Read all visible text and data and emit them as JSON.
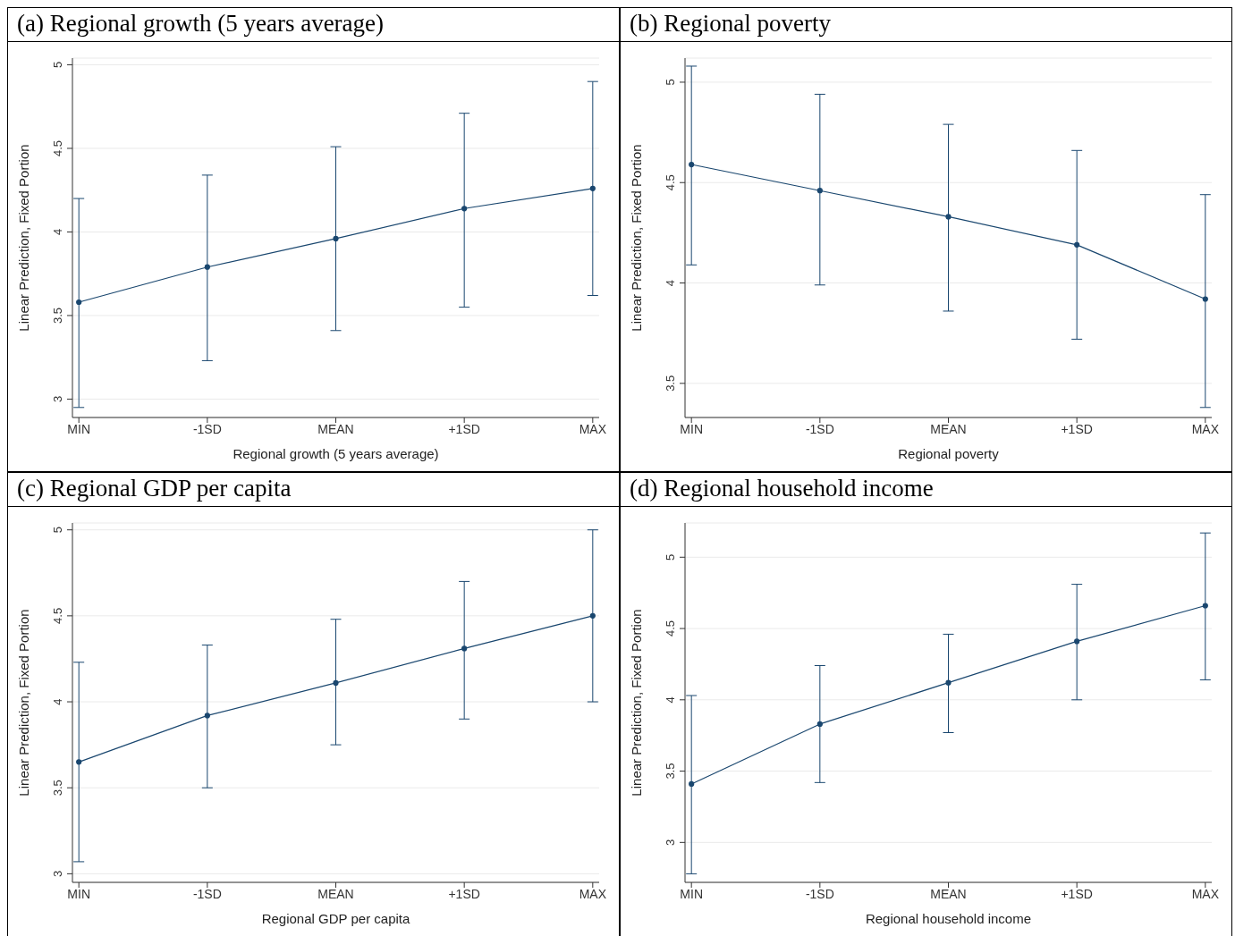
{
  "chart_data": [
    {
      "type": "line",
      "title": "(a) Regional growth (5 years average)",
      "xlabel": "Regional growth (5 years average)",
      "ylabel": "Linear Prediction, Fixed Portion",
      "categories": [
        "MIN",
        "-1SD",
        "MEAN",
        "+1SD",
        "MAX"
      ],
      "series": [
        {
          "color": "#1a476f",
          "values": [
            3.58,
            3.79,
            3.96,
            4.14,
            4.26
          ],
          "errors": [
            [
              2.95,
              4.2
            ],
            [
              3.23,
              4.34
            ],
            [
              3.41,
              4.51
            ],
            [
              3.55,
              4.71
            ],
            [
              3.62,
              4.9
            ]
          ]
        }
      ],
      "ylim": [
        2.89,
        5.04
      ],
      "yticks": [
        3,
        3.5,
        4,
        4.5,
        5
      ],
      "grid": "y",
      "marker": "circle",
      "line_style": "solid"
    },
    {
      "type": "line",
      "title": "(b) Regional poverty",
      "xlabel": "Regional poverty",
      "ylabel": "Linear Prediction, Fixed Portion",
      "categories": [
        "MIN",
        "-1SD",
        "MEAN",
        "+1SD",
        "MAX"
      ],
      "series": [
        {
          "color": "#1a476f",
          "values": [
            4.59,
            4.46,
            4.33,
            4.19,
            3.92
          ],
          "errors": [
            [
              4.09,
              5.08
            ],
            [
              3.99,
              4.94
            ],
            [
              3.86,
              4.79
            ],
            [
              3.72,
              4.66
            ],
            [
              3.38,
              4.44
            ]
          ]
        }
      ],
      "ylim": [
        3.33,
        5.12
      ],
      "yticks": [
        3.5,
        4,
        4.5,
        5
      ],
      "grid": "y",
      "marker": "circle",
      "line_style": "solid"
    },
    {
      "type": "line",
      "title": "(c) Regional GDP per capita",
      "xlabel": "Regional GDP per capita",
      "ylabel": "Linear Prediction, Fixed Portion",
      "categories": [
        "MIN",
        "-1SD",
        "MEAN",
        "+1SD",
        "MAX"
      ],
      "series": [
        {
          "color": "#1a476f",
          "values": [
            3.65,
            3.92,
            4.11,
            4.31,
            4.5
          ],
          "errors": [
            [
              3.07,
              4.23
            ],
            [
              3.5,
              4.33
            ],
            [
              3.75,
              4.48
            ],
            [
              3.9,
              4.7
            ],
            [
              4.0,
              5.0
            ]
          ]
        }
      ],
      "ylim": [
        2.95,
        5.04
      ],
      "yticks": [
        3,
        3.5,
        4,
        4.5,
        5
      ],
      "grid": "y",
      "marker": "circle",
      "line_style": "solid"
    },
    {
      "type": "line",
      "title": "(d) Regional household income",
      "xlabel": "Regional household income",
      "ylabel": "Linear Prediction, Fixed Portion",
      "categories": [
        "MIN",
        "-1SD",
        "MEAN",
        "+1SD",
        "MAX"
      ],
      "series": [
        {
          "color": "#1a476f",
          "values": [
            3.41,
            3.83,
            4.12,
            4.41,
            4.66
          ],
          "errors": [
            [
              2.78,
              4.03
            ],
            [
              3.42,
              4.24
            ],
            [
              3.77,
              4.46
            ],
            [
              4.0,
              4.81
            ],
            [
              4.14,
              5.17
            ]
          ]
        }
      ],
      "ylim": [
        2.72,
        5.24
      ],
      "yticks": [
        3,
        3.5,
        4,
        4.5,
        5
      ],
      "grid": "y",
      "marker": "circle",
      "line_style": "solid"
    }
  ]
}
